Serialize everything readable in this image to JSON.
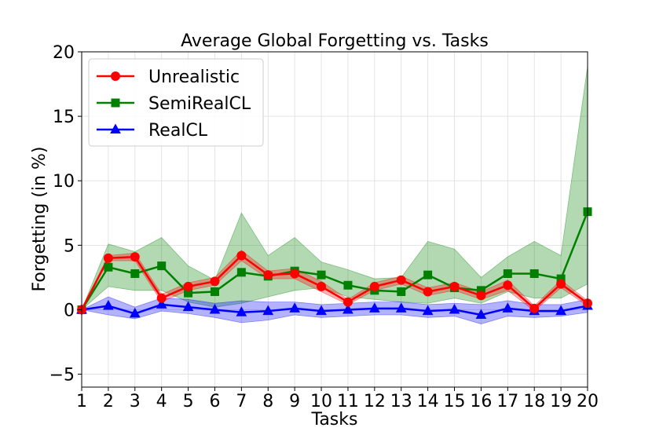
{
  "chart_data": {
    "type": "line",
    "title": "Average Global Forgetting vs. Tasks",
    "xlabel": "Tasks",
    "ylabel": "Forgetting (in %)",
    "xlim": [
      1,
      20
    ],
    "ylim": [
      -6,
      20
    ],
    "x": [
      1,
      2,
      3,
      4,
      5,
      6,
      7,
      8,
      9,
      10,
      11,
      12,
      13,
      14,
      15,
      16,
      17,
      18,
      19,
      20
    ],
    "x_ticks": [
      "1",
      "2",
      "3",
      "4",
      "5",
      "6",
      "7",
      "8",
      "9",
      "10",
      "11",
      "12",
      "13",
      "14",
      "15",
      "16",
      "17",
      "18",
      "19",
      "20"
    ],
    "y_ticks": [
      -5,
      0,
      5,
      10,
      15,
      20
    ],
    "y_tick_labels": [
      "−5",
      "0",
      "5",
      "10",
      "15",
      "20"
    ],
    "grid": true,
    "legend_position": "top-left",
    "series": [
      {
        "name": "Unrealistic",
        "color": "#ff0000",
        "marker": "circle",
        "values": [
          0,
          4.0,
          4.1,
          0.9,
          1.8,
          2.2,
          4.2,
          2.7,
          2.8,
          1.8,
          0.6,
          1.8,
          2.3,
          1.4,
          1.8,
          1.1,
          1.9,
          0.1,
          2.0,
          0.5
        ],
        "lower": [
          0,
          3.8,
          3.8,
          0.6,
          1.5,
          1.9,
          3.8,
          2.4,
          2.4,
          1.4,
          0.4,
          1.5,
          2.0,
          1.1,
          1.5,
          0.8,
          1.5,
          -0.1,
          1.7,
          0.3
        ],
        "upper": [
          0,
          4.2,
          4.4,
          1.2,
          2.1,
          2.5,
          4.6,
          3.0,
          3.2,
          2.2,
          0.8,
          2.1,
          2.6,
          1.7,
          2.1,
          1.4,
          2.3,
          0.3,
          2.3,
          0.7
        ]
      },
      {
        "name": "SemiRealCL",
        "color": "#008000",
        "marker": "square",
        "values": [
          0,
          3.3,
          2.8,
          3.4,
          1.3,
          1.4,
          2.9,
          2.6,
          3.0,
          2.7,
          1.9,
          1.5,
          1.4,
          2.7,
          1.7,
          1.5,
          2.8,
          2.8,
          2.4,
          7.6
        ],
        "lower": [
          0,
          1.8,
          1.5,
          1.5,
          0.6,
          0.2,
          0.5,
          1.0,
          1.5,
          1.7,
          1.0,
          0.8,
          0.6,
          0.5,
          0.9,
          0.5,
          1.4,
          0.9,
          0.9,
          2.0
        ],
        "upper": [
          0,
          5.1,
          4.5,
          5.6,
          3.4,
          2.3,
          7.5,
          4.2,
          5.6,
          3.7,
          3.1,
          2.4,
          2.5,
          5.3,
          4.7,
          2.5,
          4.1,
          5.3,
          4.2,
          18.9
        ]
      },
      {
        "name": "RealCL",
        "color": "#0000ff",
        "marker": "triangle",
        "values": [
          0,
          0.3,
          -0.3,
          0.4,
          0.2,
          0.0,
          -0.2,
          -0.1,
          0.1,
          -0.1,
          0.0,
          0.1,
          0.1,
          -0.1,
          0.0,
          -0.4,
          0.1,
          -0.1,
          -0.1,
          0.3
        ],
        "lower": [
          0,
          -0.4,
          -0.7,
          -0.1,
          -0.3,
          -0.6,
          -1.0,
          -0.8,
          -0.4,
          -0.6,
          -0.5,
          -0.4,
          -0.4,
          -0.6,
          -0.5,
          -1.1,
          -0.5,
          -0.6,
          -0.5,
          -0.2
        ],
        "upper": [
          0,
          1.0,
          0.2,
          0.9,
          0.8,
          0.5,
          0.7,
          0.6,
          0.6,
          0.4,
          0.5,
          0.6,
          0.6,
          0.4,
          0.5,
          0.4,
          0.7,
          0.4,
          0.4,
          0.8
        ]
      }
    ]
  }
}
